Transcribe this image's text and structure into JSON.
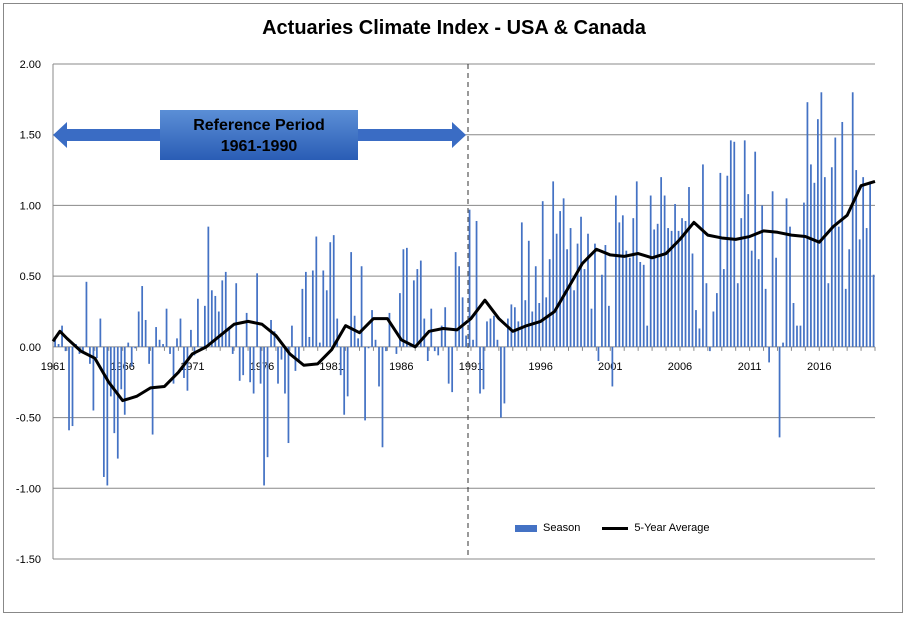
{
  "chart_data": {
    "type": "bar",
    "title": "Actuaries Climate Index  - USA & Canada",
    "annotation": {
      "line1": "Reference Period",
      "line2": "1961-1990"
    },
    "ylim": [
      -1.5,
      2.0
    ],
    "yticks": [
      "2.00",
      "1.50",
      "1.00",
      "0.50",
      "0.00",
      "-0.50",
      "-1.00",
      "-1.50"
    ],
    "xticks": [
      "1961",
      "1966",
      "1971",
      "1976",
      "1981",
      "1986",
      "1991",
      "1996",
      "2001",
      "2006",
      "2011",
      "2016"
    ],
    "grid": true,
    "legend_position": "bottom-right",
    "colors": {
      "bars": "#4472c4",
      "line": "#000000",
      "arrow": "#3a6cc4"
    },
    "start_year": 1961,
    "series": [
      {
        "name": "Season",
        "type": "bar",
        "values": [
          0.05,
          0.02,
          0.15,
          -0.03,
          -0.59,
          -0.56,
          0.02,
          -0.05,
          -0.03,
          0.46,
          -0.12,
          -0.45,
          -0.08,
          0.2,
          -0.92,
          -0.98,
          -0.35,
          -0.61,
          -0.79,
          -0.3,
          -0.48,
          0.03,
          -0.14,
          -0.01,
          0.25,
          0.43,
          0.19,
          -0.12,
          -0.62,
          0.14,
          0.05,
          0.02,
          0.27,
          -0.05,
          -0.26,
          0.06,
          0.2,
          -0.22,
          -0.31,
          0.12,
          -0.06,
          0.34,
          -0.01,
          0.29,
          0.85,
          0.4,
          0.36,
          0.25,
          0.47,
          0.53,
          0.14,
          -0.05,
          0.45,
          -0.24,
          -0.2,
          0.24,
          -0.25,
          -0.33,
          0.52,
          -0.26,
          -0.98,
          -0.78,
          0.19,
          0.11,
          -0.26,
          -0.09,
          -0.33,
          -0.68,
          0.15,
          -0.17,
          -0.11,
          0.41,
          0.53,
          0.07,
          0.54,
          0.78,
          0.03,
          0.54,
          0.4,
          0.74,
          0.79,
          0.2,
          -0.2,
          -0.48,
          -0.35,
          0.67,
          0.22,
          0.06,
          0.57,
          -0.52,
          -0.01,
          0.26,
          0.05,
          -0.28,
          -0.71,
          -0.03,
          0.24,
          0.0,
          -0.05,
          0.38,
          0.69,
          0.7,
          0.02,
          0.47,
          0.55,
          0.61,
          0.2,
          -0.1,
          0.27,
          -0.03,
          -0.06,
          0.15,
          0.28,
          -0.26,
          -0.32,
          0.67,
          0.57,
          0.35,
          0.08,
          0.97,
          0.05,
          0.89,
          -0.33,
          -0.3,
          0.18,
          0.2,
          0.22,
          0.05,
          -0.5,
          -0.4,
          0.2,
          0.3,
          0.28,
          0.18,
          0.88,
          0.33,
          0.75,
          0.25,
          0.57,
          0.31,
          1.03,
          0.35,
          0.62,
          1.17,
          0.8,
          0.96,
          1.05,
          0.69,
          0.84,
          0.4,
          0.73,
          0.92,
          0.55,
          0.8,
          0.27,
          0.73,
          -0.1,
          0.51,
          0.72,
          0.29,
          -0.28,
          1.07,
          0.88,
          0.93,
          0.68,
          0.63,
          0.91,
          1.17,
          0.6,
          0.58,
          0.15,
          1.07,
          0.83,
          0.87,
          1.2,
          1.07,
          0.84,
          0.82,
          1.01,
          0.82,
          0.91,
          0.89,
          1.13,
          0.66,
          0.26,
          0.13,
          1.29,
          0.45,
          -0.03,
          0.25,
          0.38,
          1.23,
          0.55,
          1.21,
          1.46,
          1.45,
          0.45,
          0.91,
          1.46,
          1.08,
          0.68,
          1.38,
          0.62,
          1.0,
          0.41,
          -0.11,
          1.1,
          0.63,
          -0.64,
          0.03,
          1.05,
          0.85,
          0.31,
          0.15,
          0.15,
          1.02,
          1.73,
          1.29,
          1.16,
          1.61,
          1.8,
          1.2,
          0.45,
          1.27,
          1.48,
          0.85,
          1.59,
          0.41,
          0.69,
          1.8,
          1.25,
          0.76,
          1.2,
          0.84,
          1.17,
          0.51
        ]
      },
      {
        "name": "5-Year Average",
        "type": "line",
        "x": [
          1961,
          1961.5,
          1962,
          1963,
          1964,
          1965,
          1966,
          1967,
          1968,
          1969,
          1970,
          1971,
          1972,
          1973,
          1974,
          1975,
          1976,
          1977,
          1978,
          1979,
          1980,
          1981,
          1982,
          1983,
          1984,
          1985,
          1986,
          1987,
          1988,
          1989,
          1990,
          1991,
          1992,
          1993,
          1994,
          1995,
          1996,
          1997,
          1998,
          1999,
          2000,
          2001,
          2002,
          2003,
          2004,
          2005,
          2006,
          2007,
          2008,
          2009,
          2010,
          2011,
          2012,
          2013,
          2014,
          2015,
          2016,
          2017,
          2018,
          2019,
          2020
        ],
        "values": [
          0.04,
          0.11,
          0.06,
          -0.03,
          -0.08,
          -0.25,
          -0.38,
          -0.35,
          -0.29,
          -0.28,
          -0.18,
          -0.05,
          0.0,
          0.08,
          0.16,
          0.18,
          0.16,
          0.08,
          -0.05,
          -0.13,
          -0.12,
          -0.02,
          0.15,
          0.1,
          0.2,
          0.2,
          0.05,
          0.0,
          0.11,
          0.13,
          0.12,
          0.2,
          0.33,
          0.2,
          0.11,
          0.15,
          0.18,
          0.25,
          0.42,
          0.59,
          0.69,
          0.65,
          0.64,
          0.66,
          0.63,
          0.66,
          0.76,
          0.88,
          0.79,
          0.77,
          0.76,
          0.78,
          0.82,
          0.81,
          0.79,
          0.78,
          0.74,
          0.85,
          0.93,
          1.14,
          1.17
        ]
      }
    ]
  }
}
